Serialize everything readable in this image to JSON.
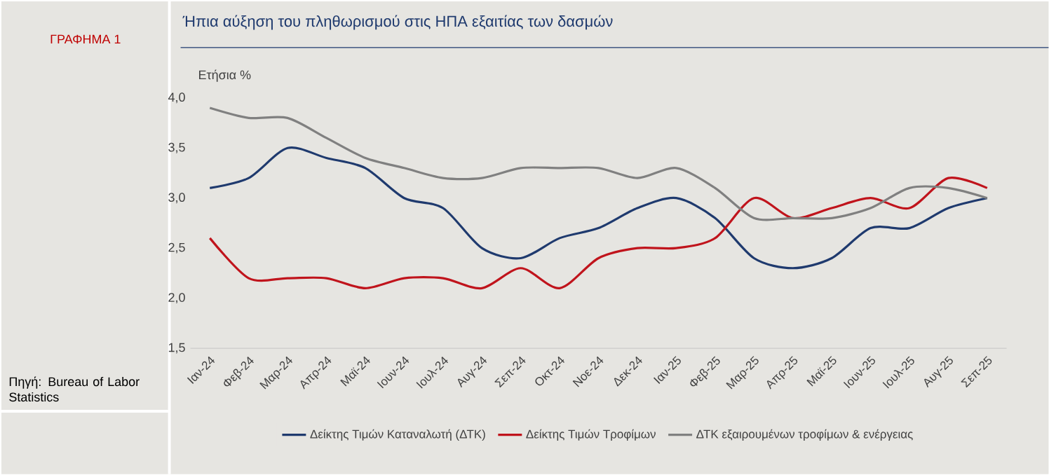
{
  "chart_data": {
    "type": "line",
    "title": "Ήπια αύξηση του πληθωρισμού στις ΗΠΑ εξαιτίας των δασμών",
    "ylabel": "Ετήσια %",
    "annotations": [
      "ΓΡΑΦΗΜΑ 1",
      "Πηγή: Bureau of Labor Statistics"
    ],
    "categories": [
      "Ιαν-24",
      "Φεβ-24",
      "Μαρ-24",
      "Απρ-24",
      "Μαϊ-24",
      "Ιουν-24",
      "Ιουλ-24",
      "Αυγ-24",
      "Σεπ-24",
      "Οκτ-24",
      "Νοε-24",
      "Δεκ-24",
      "Ιαν-25",
      "Φεβ-25",
      "Μαρ-25",
      "Απρ-25",
      "Μαϊ-25",
      "Ιουν-25",
      "Ιουλ-25",
      "Αυγ-25",
      "Σεπ-25"
    ],
    "series": [
      {
        "name": "Δείκτης Τιμών Καταναλωτή (ΔΤΚ)",
        "color": "#1f3a6e",
        "values": [
          3.1,
          3.2,
          3.5,
          3.4,
          3.3,
          3.0,
          2.9,
          2.5,
          2.4,
          2.6,
          2.7,
          2.9,
          3.0,
          2.8,
          2.4,
          2.3,
          2.4,
          2.7,
          2.7,
          2.9,
          3.0
        ]
      },
      {
        "name": "Δείκτης Τιμών Τροφίμων",
        "color": "#c0141c",
        "values": [
          2.6,
          2.2,
          2.2,
          2.2,
          2.1,
          2.2,
          2.2,
          2.1,
          2.3,
          2.1,
          2.4,
          2.5,
          2.5,
          2.6,
          3.0,
          2.8,
          2.9,
          3.0,
          2.9,
          3.2,
          3.1
        ]
      },
      {
        "name": "ΔΤΚ εξαιρουμένων τροφίμων & ενέργειας",
        "color": "#808080",
        "values": [
          3.9,
          3.8,
          3.8,
          3.6,
          3.4,
          3.3,
          3.2,
          3.2,
          3.3,
          3.3,
          3.3,
          3.2,
          3.3,
          3.1,
          2.8,
          2.8,
          2.8,
          2.9,
          3.1,
          3.1,
          3.0
        ]
      }
    ],
    "ylim": [
      1.5,
      4.0
    ],
    "yticks": [
      {
        "value": 1.5,
        "label": "1,5"
      },
      {
        "value": 2.0,
        "label": "2,0"
      },
      {
        "value": 2.5,
        "label": "2,5"
      },
      {
        "value": 3.0,
        "label": "3,0"
      },
      {
        "value": 3.5,
        "label": "3,5"
      },
      {
        "value": 4.0,
        "label": "4,0"
      }
    ],
    "legend": "bottom",
    "marker": "none",
    "line_style": "solid"
  }
}
